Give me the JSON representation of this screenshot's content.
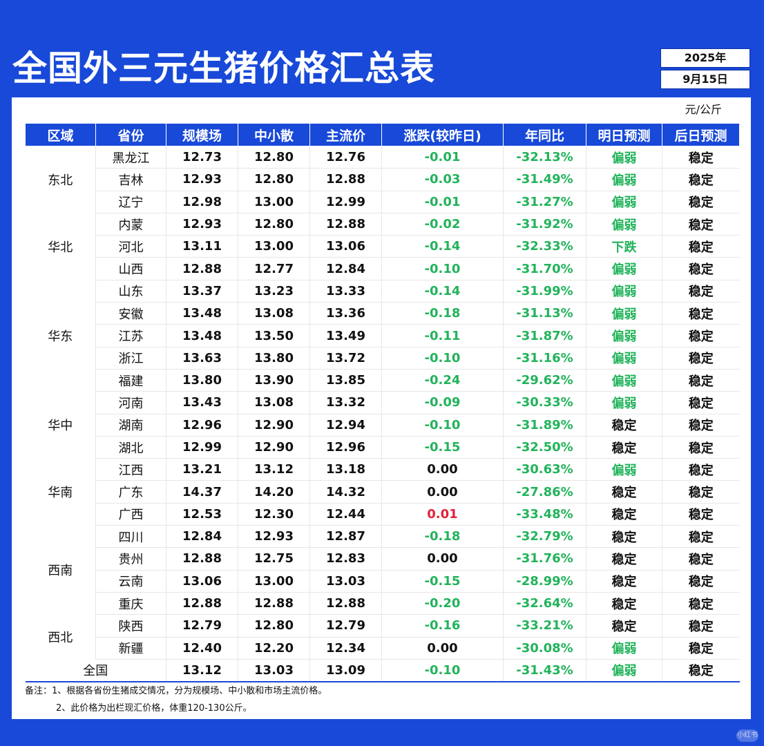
{
  "title": "全国外三元生猪价格汇总表",
  "date": {
    "year": "2025年",
    "day": "9月15日"
  },
  "unit": "元/公斤",
  "headers": [
    "区域",
    "省份",
    "规模场",
    "中小散",
    "主流价",
    "涨跌(较昨日)",
    "年同比",
    "明日预测",
    "后日预测"
  ],
  "regions": [
    {
      "name": "东北",
      "rows": [
        {
          "province": "黑龙江",
          "large": "12.73",
          "small": "12.80",
          "main": "12.76",
          "change": "-0.01",
          "yoy": "-32.13%",
          "tomorrow": "偏弱",
          "after": "稳定"
        },
        {
          "province": "吉林",
          "large": "12.93",
          "small": "12.80",
          "main": "12.88",
          "change": "-0.03",
          "yoy": "-31.49%",
          "tomorrow": "偏弱",
          "after": "稳定"
        },
        {
          "province": "辽宁",
          "large": "12.98",
          "small": "13.00",
          "main": "12.99",
          "change": "-0.01",
          "yoy": "-31.27%",
          "tomorrow": "偏弱",
          "after": "稳定"
        }
      ]
    },
    {
      "name": "华北",
      "rows": [
        {
          "province": "内蒙",
          "large": "12.93",
          "small": "12.80",
          "main": "12.88",
          "change": "-0.02",
          "yoy": "-31.92%",
          "tomorrow": "偏弱",
          "after": "稳定"
        },
        {
          "province": "河北",
          "large": "13.11",
          "small": "13.00",
          "main": "13.06",
          "change": "-0.14",
          "yoy": "-32.33%",
          "tomorrow": "下跌",
          "after": "稳定"
        },
        {
          "province": "山西",
          "large": "12.88",
          "small": "12.77",
          "main": "12.84",
          "change": "-0.10",
          "yoy": "-31.70%",
          "tomorrow": "偏弱",
          "after": "稳定"
        }
      ]
    },
    {
      "name": "华东",
      "rows": [
        {
          "province": "山东",
          "large": "13.37",
          "small": "13.23",
          "main": "13.33",
          "change": "-0.14",
          "yoy": "-31.99%",
          "tomorrow": "偏弱",
          "after": "稳定"
        },
        {
          "province": "安徽",
          "large": "13.48",
          "small": "13.08",
          "main": "13.36",
          "change": "-0.18",
          "yoy": "-31.13%",
          "tomorrow": "偏弱",
          "after": "稳定"
        },
        {
          "province": "江苏",
          "large": "13.48",
          "small": "13.50",
          "main": "13.49",
          "change": "-0.11",
          "yoy": "-31.87%",
          "tomorrow": "偏弱",
          "after": "稳定"
        },
        {
          "province": "浙江",
          "large": "13.63",
          "small": "13.80",
          "main": "13.72",
          "change": "-0.10",
          "yoy": "-31.16%",
          "tomorrow": "偏弱",
          "after": "稳定"
        },
        {
          "province": "福建",
          "large": "13.80",
          "small": "13.90",
          "main": "13.85",
          "change": "-0.24",
          "yoy": "-29.62%",
          "tomorrow": "偏弱",
          "after": "稳定"
        }
      ]
    },
    {
      "name": "华中",
      "rows": [
        {
          "province": "河南",
          "large": "13.43",
          "small": "13.08",
          "main": "13.32",
          "change": "-0.09",
          "yoy": "-30.33%",
          "tomorrow": "偏弱",
          "after": "稳定"
        },
        {
          "province": "湖南",
          "large": "12.96",
          "small": "12.90",
          "main": "12.94",
          "change": "-0.10",
          "yoy": "-31.89%",
          "tomorrow": "稳定",
          "after": "稳定"
        },
        {
          "province": "湖北",
          "large": "12.99",
          "small": "12.90",
          "main": "12.96",
          "change": "-0.15",
          "yoy": "-32.50%",
          "tomorrow": "稳定",
          "after": "稳定"
        }
      ]
    },
    {
      "name": "华南",
      "rows": [
        {
          "province": "江西",
          "large": "13.21",
          "small": "13.12",
          "main": "13.18",
          "change": "0.00",
          "yoy": "-30.63%",
          "tomorrow": "偏弱",
          "after": "稳定"
        },
        {
          "province": "广东",
          "large": "14.37",
          "small": "14.20",
          "main": "14.32",
          "change": "0.00",
          "yoy": "-27.86%",
          "tomorrow": "稳定",
          "after": "稳定"
        },
        {
          "province": "广西",
          "large": "12.53",
          "small": "12.30",
          "main": "12.44",
          "change": "0.01",
          "yoy": "-33.48%",
          "tomorrow": "稳定",
          "after": "稳定"
        }
      ]
    },
    {
      "name": "西南",
      "rows": [
        {
          "province": "四川",
          "large": "12.84",
          "small": "12.93",
          "main": "12.87",
          "change": "-0.18",
          "yoy": "-32.79%",
          "tomorrow": "稳定",
          "after": "稳定"
        },
        {
          "province": "贵州",
          "large": "12.88",
          "small": "12.75",
          "main": "12.83",
          "change": "0.00",
          "yoy": "-31.76%",
          "tomorrow": "稳定",
          "after": "稳定"
        },
        {
          "province": "云南",
          "large": "13.06",
          "small": "13.00",
          "main": "13.03",
          "change": "-0.15",
          "yoy": "-28.99%",
          "tomorrow": "稳定",
          "after": "稳定"
        },
        {
          "province": "重庆",
          "large": "12.88",
          "small": "12.88",
          "main": "12.88",
          "change": "-0.20",
          "yoy": "-32.64%",
          "tomorrow": "稳定",
          "after": "稳定"
        }
      ]
    },
    {
      "name": "西北",
      "rows": [
        {
          "province": "陕西",
          "large": "12.79",
          "small": "12.80",
          "main": "12.79",
          "change": "-0.16",
          "yoy": "-33.21%",
          "tomorrow": "稳定",
          "after": "稳定"
        },
        {
          "province": "新疆",
          "large": "12.40",
          "small": "12.20",
          "main": "12.34",
          "change": "0.00",
          "yoy": "-30.08%",
          "tomorrow": "偏弱",
          "after": "稳定"
        }
      ]
    }
  ],
  "total": {
    "label": "全国",
    "large": "13.12",
    "small": "13.03",
    "main": "13.09",
    "change": "-0.10",
    "yoy": "-31.43%",
    "tomorrow": "偏弱",
    "after": "稳定"
  },
  "notes": [
    "备注：1、根据各省份生猪成交情况，分为规模场、中小散和市场主流价格。",
    "2、此价格为出栏现汇价格，体重120-130公斤。"
  ],
  "watermark": "小红书",
  "colors": {
    "brand_blue": "#1849d8",
    "down_green": "#21b35a",
    "up_red": "#e0223a"
  }
}
